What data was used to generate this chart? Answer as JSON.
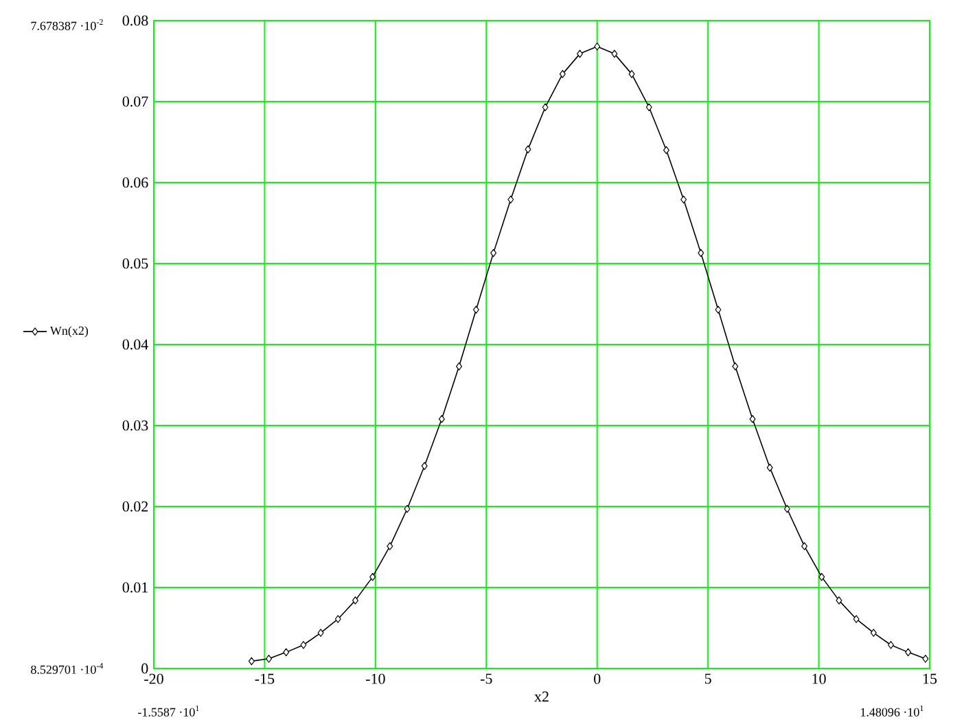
{
  "chart_data": {
    "type": "line",
    "xlabel": "x2",
    "x": [
      -15.59,
      -14.81,
      -14.03,
      -13.25,
      -12.47,
      -11.69,
      -10.91,
      -10.13,
      -9.35,
      -8.57,
      -7.79,
      -7.01,
      -6.23,
      -5.46,
      -4.68,
      -3.9,
      -3.12,
      -2.34,
      -1.56,
      -0.78,
      0.0,
      0.78,
      1.56,
      2.34,
      3.12,
      3.9,
      4.68,
      5.46,
      6.23,
      7.01,
      7.79,
      8.57,
      9.35,
      10.13,
      10.91,
      11.69,
      12.47,
      13.25,
      14.03,
      14.81
    ],
    "series": [
      {
        "name": "Wn(x2)",
        "color": "#000000",
        "values": [
          0.0009,
          0.0012,
          0.002,
          0.0029,
          0.0044,
          0.0061,
          0.0084,
          0.0113,
          0.0151,
          0.0197,
          0.025,
          0.0308,
          0.0373,
          0.0443,
          0.0513,
          0.0579,
          0.0641,
          0.0693,
          0.0734,
          0.0759,
          0.0768,
          0.0759,
          0.0734,
          0.0693,
          0.064,
          0.0579,
          0.0513,
          0.0443,
          0.0373,
          0.0308,
          0.0248,
          0.0197,
          0.0151,
          0.0113,
          0.0084,
          0.0061,
          0.0044,
          0.0029,
          0.002,
          0.0012
        ]
      }
    ],
    "xlim": [
      -20,
      15
    ],
    "ylim": [
      0,
      0.08
    ],
    "xticks": [
      -20,
      -15,
      -10,
      -5,
      0,
      5,
      10,
      15
    ],
    "yticks": [
      0,
      0.01,
      0.02,
      0.03,
      0.04,
      0.05,
      0.06,
      0.07,
      0.08
    ],
    "grid": true,
    "legend": "left",
    "marker": "diamond",
    "line_style": "solid",
    "annotations": [
      "7.678387 ·10$^{-2}$",
      "8.529701 ·10$^{-4}$",
      "-1.5587 ·10$^{1}$",
      "1.48096 ·10$^{1}$"
    ]
  }
}
